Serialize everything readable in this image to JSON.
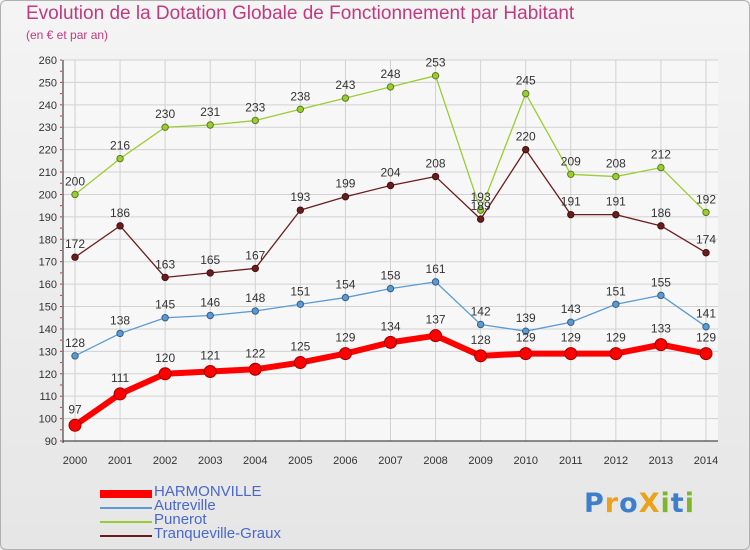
{
  "header": {
    "title": "Evolution de la Dotation Globale de Fonctionnement par Habitant",
    "subtitle": "(en € et par an)"
  },
  "logo": {
    "text": "ProXiti",
    "letters": [
      {
        "ch": "P",
        "color": "#3e7fc9"
      },
      {
        "ch": "r",
        "color": "#e8a21c"
      },
      {
        "ch": "o",
        "color": "#3e7fc9"
      },
      {
        "ch": "X",
        "color": "#e8a21c"
      },
      {
        "ch": "i",
        "color": "#7fb52c"
      },
      {
        "ch": "t",
        "color": "#3e7fc9"
      },
      {
        "ch": "i",
        "color": "#7fb52c"
      }
    ]
  },
  "chart_data": {
    "type": "line",
    "title": "Evolution de la Dotation Globale de Fonctionnement par Habitant",
    "subtitle": "(en € et par an)",
    "x": [
      2000,
      2001,
      2002,
      2003,
      2004,
      2005,
      2006,
      2007,
      2008,
      2009,
      2010,
      2011,
      2012,
      2013,
      2014
    ],
    "ylim": [
      90,
      260
    ],
    "yticks": [
      90,
      100,
      110,
      120,
      130,
      140,
      150,
      160,
      170,
      180,
      190,
      200,
      210,
      220,
      230,
      240,
      250,
      260
    ],
    "grid": true,
    "legend_position": "bottom-left",
    "series": [
      {
        "name": "HARMONVILLE",
        "color": "#ff0000",
        "values": [
          97,
          111,
          120,
          121,
          122,
          125,
          129,
          134,
          137,
          128,
          129,
          129,
          129,
          133,
          129
        ]
      },
      {
        "name": "Autreville",
        "color": "#5b9bd5",
        "values": [
          128,
          138,
          145,
          146,
          148,
          151,
          154,
          158,
          161,
          142,
          139,
          143,
          151,
          155,
          141
        ]
      },
      {
        "name": "Punerot",
        "color": "#9acd32",
        "values": [
          200,
          216,
          230,
          231,
          233,
          238,
          243,
          248,
          253,
          193,
          245,
          209,
          208,
          212,
          192
        ]
      },
      {
        "name": "Tranqueville-Graux",
        "color": "#6b1d1d",
        "values": [
          172,
          186,
          163,
          165,
          167,
          193,
          199,
          204,
          208,
          189,
          220,
          191,
          191,
          186,
          174
        ]
      }
    ]
  }
}
